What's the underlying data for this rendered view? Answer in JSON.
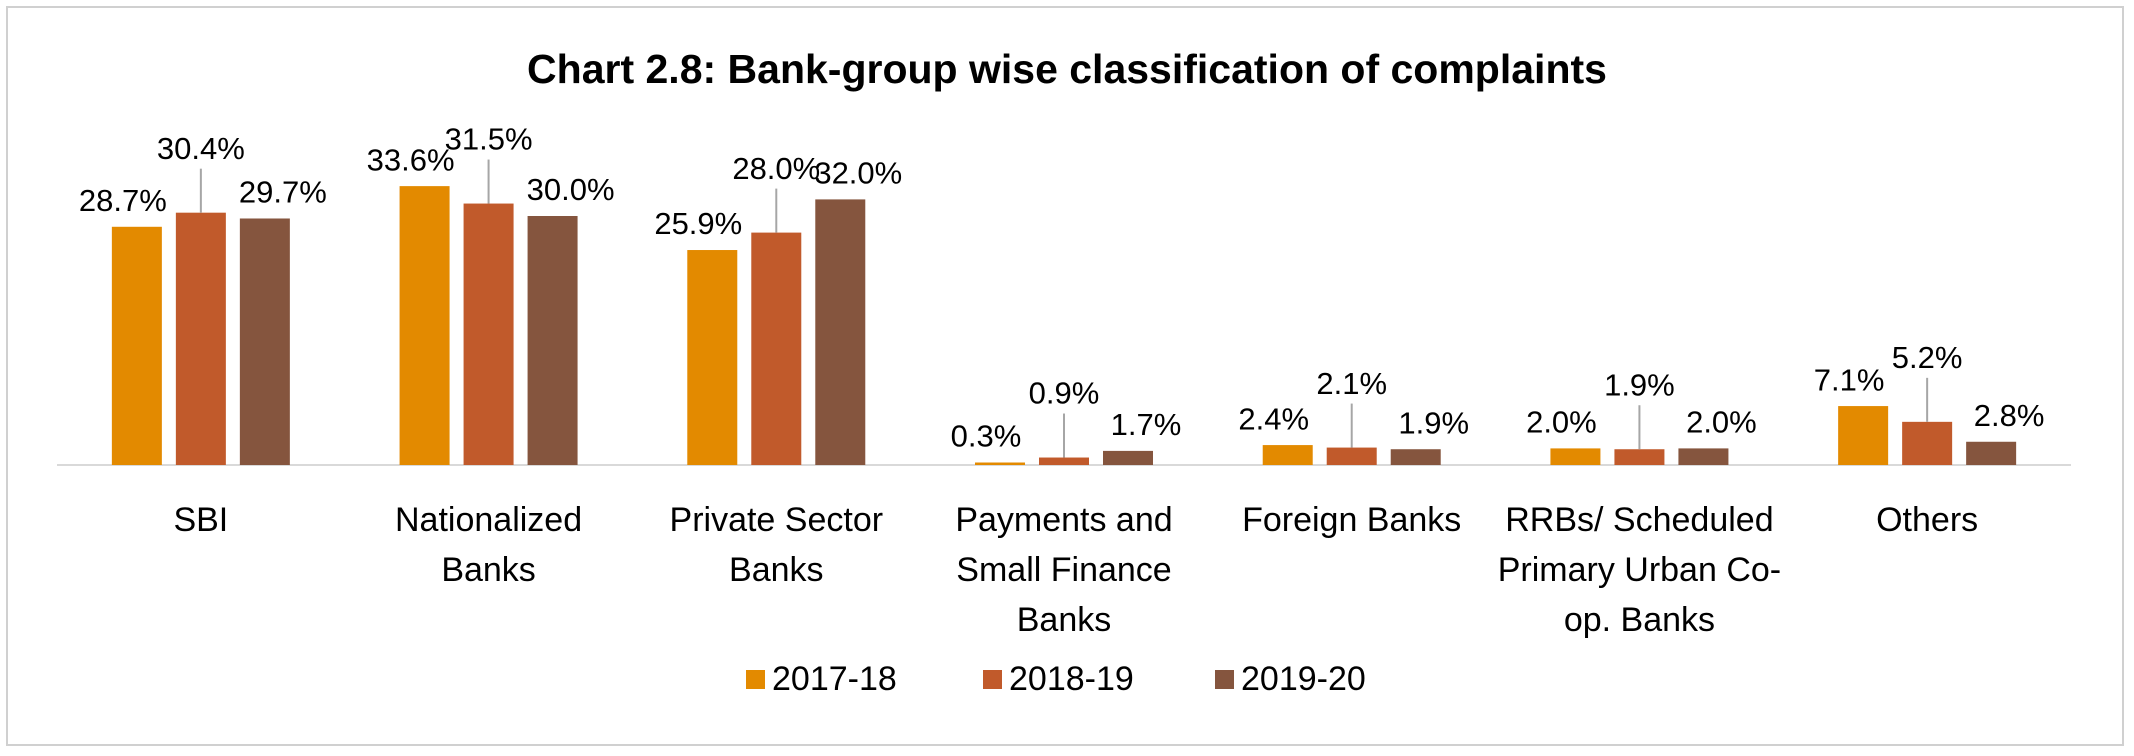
{
  "chart_data": {
    "type": "bar",
    "title": "Chart 2.8: Bank-group wise classification of complaints",
    "categories": [
      "SBI",
      "Nationalized Banks",
      "Private Sector Banks",
      "Payments and Small Finance Banks",
      "Foreign Banks",
      "RRBs/ Scheduled Primary Urban Co-op. Banks",
      "Others"
    ],
    "series": [
      {
        "name": "2017-18",
        "color": "#e38a00",
        "values": [
          28.7,
          33.6,
          25.9,
          0.3,
          2.4,
          2.0,
          7.1
        ],
        "value_labels": [
          "28.7%",
          "33.6%",
          "25.9%",
          "0.3%",
          "2.4%",
          "2.0%",
          "7.1%"
        ]
      },
      {
        "name": "2018-19",
        "color": "#c15a2b",
        "values": [
          30.4,
          31.5,
          28.0,
          0.9,
          2.1,
          1.9,
          5.2
        ],
        "value_labels": [
          "30.4%",
          "31.5%",
          "28.0%",
          "0.9%",
          "2.1%",
          "1.9%",
          "5.2%"
        ]
      },
      {
        "name": "2019-20",
        "color": "#85553e",
        "values": [
          29.7,
          30.0,
          32.0,
          1.7,
          1.9,
          2.0,
          2.8
        ],
        "value_labels": [
          "29.7%",
          "30.0%",
          "32.0%",
          "1.7%",
          "1.9%",
          "2.0%",
          "2.8%"
        ]
      }
    ],
    "legend": "bottom"
  }
}
